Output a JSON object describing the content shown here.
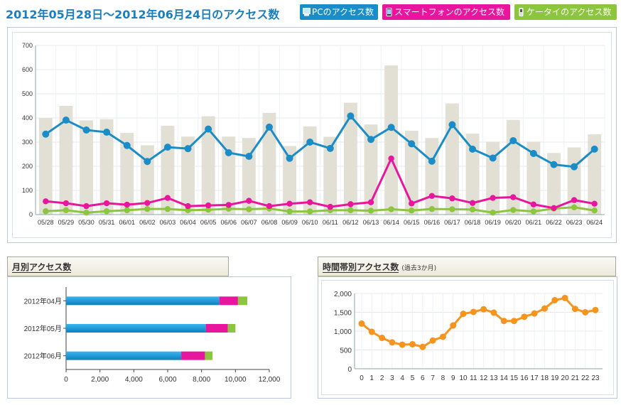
{
  "header": {
    "title": "2012年05月28日～2012年06月24日のアクセス数",
    "legend_buttons": [
      {
        "label": "PCのアクセス数",
        "color": "#1a8dc8",
        "icon": "pc-icon"
      },
      {
        "label": "スマートフォンのアクセス数",
        "color": "#e8169e",
        "icon": "smartphone-icon"
      },
      {
        "label": "ケータイのアクセス数",
        "color": "#8cc63f",
        "icon": "mobile-phone-icon"
      }
    ]
  },
  "monthly": {
    "title": "月別アクセス数"
  },
  "hourly": {
    "title": "時間帯別アクセス数",
    "note": "(過去3か月)"
  },
  "chart_data": [
    {
      "type": "bar+line",
      "categories": [
        "05/28",
        "05/29",
        "05/30",
        "05/31",
        "06/01",
        "06/02",
        "06/03",
        "06/04",
        "06/05",
        "06/06",
        "06/07",
        "06/08",
        "06/09",
        "06/10",
        "06/11",
        "06/12",
        "06/13",
        "06/14",
        "06/15",
        "06/16",
        "06/17",
        "06/18",
        "06/19",
        "06/20",
        "06/21",
        "06/22",
        "06/23",
        "06/24"
      ],
      "ylim": [
        0,
        700
      ],
      "yticks": [
        0,
        100,
        200,
        300,
        400,
        500,
        600,
        700
      ],
      "grid": true,
      "series": [
        {
          "kind": "bar",
          "color": "#e2e0d4",
          "values": [
            400,
            450,
            390,
            395,
            338,
            287,
            368,
            323,
            407,
            323,
            317,
            421,
            284,
            365,
            322,
            463,
            373,
            617,
            347,
            317,
            460,
            335,
            302,
            392,
            302,
            255,
            278,
            332
          ]
        },
        {
          "kind": "line",
          "name": "PCのアクセス数",
          "color": "#1a8dc8",
          "values": [
            333,
            391,
            350,
            341,
            286,
            220,
            279,
            273,
            354,
            256,
            241,
            362,
            233,
            300,
            274,
            408,
            311,
            361,
            293,
            221,
            372,
            271,
            234,
            306,
            253,
            207,
            198,
            271
          ]
        },
        {
          "kind": "line",
          "name": "スマートフォンのアクセス数",
          "color": "#e8169e",
          "values": [
            55,
            47,
            35,
            47,
            41,
            48,
            69,
            35,
            38,
            40,
            57,
            35,
            45,
            51,
            32,
            43,
            51,
            232,
            46,
            77,
            67,
            48,
            69,
            72,
            42,
            27,
            60,
            45
          ]
        },
        {
          "kind": "line",
          "name": "ケータイのアクセス数",
          "color": "#8cc63f",
          "values": [
            14,
            18,
            8,
            14,
            18,
            23,
            23,
            18,
            20,
            24,
            22,
            25,
            13,
            13,
            18,
            18,
            16,
            22,
            17,
            23,
            22,
            21,
            8,
            19,
            13,
            25,
            30,
            17
          ]
        }
      ]
    },
    {
      "type": "stacked-bar-horizontal",
      "categories": [
        "2012年04月",
        "2012年05月",
        "2012年06月"
      ],
      "xlim": [
        0,
        12000
      ],
      "xticks": [
        0,
        2000,
        4000,
        6000,
        8000,
        10000,
        12000
      ],
      "xtick_labels": [
        "0",
        "2,000",
        "4,000",
        "6,000",
        "8,000",
        "10,000",
        "12,000"
      ],
      "series": [
        {
          "name": "PCのアクセス数",
          "color": "#1a8dc8",
          "values": [
            9050,
            8250,
            6800
          ]
        },
        {
          "name": "スマートフォンのアクセス数",
          "color": "#e8169e",
          "values": [
            1100,
            1300,
            1400
          ]
        },
        {
          "name": "ケータイのアクセス数",
          "color": "#8cc63f",
          "values": [
            550,
            450,
            450
          ]
        }
      ]
    },
    {
      "type": "line",
      "x": [
        0,
        1,
        2,
        3,
        4,
        5,
        6,
        7,
        8,
        9,
        10,
        11,
        12,
        13,
        14,
        15,
        16,
        17,
        18,
        19,
        20,
        21,
        22,
        23
      ],
      "ylim": [
        0,
        2000
      ],
      "yticks": [
        0,
        500,
        1000,
        1500,
        2000
      ],
      "ytick_labels": [
        "0",
        "500",
        "1,000",
        "1,500",
        "2,000"
      ],
      "grid": true,
      "series": [
        {
          "color": "#f7941d",
          "values": [
            1200,
            980,
            820,
            700,
            640,
            650,
            580,
            750,
            850,
            1150,
            1460,
            1510,
            1580,
            1490,
            1270,
            1270,
            1380,
            1470,
            1600,
            1820,
            1880,
            1590,
            1500,
            1560
          ]
        }
      ]
    }
  ]
}
